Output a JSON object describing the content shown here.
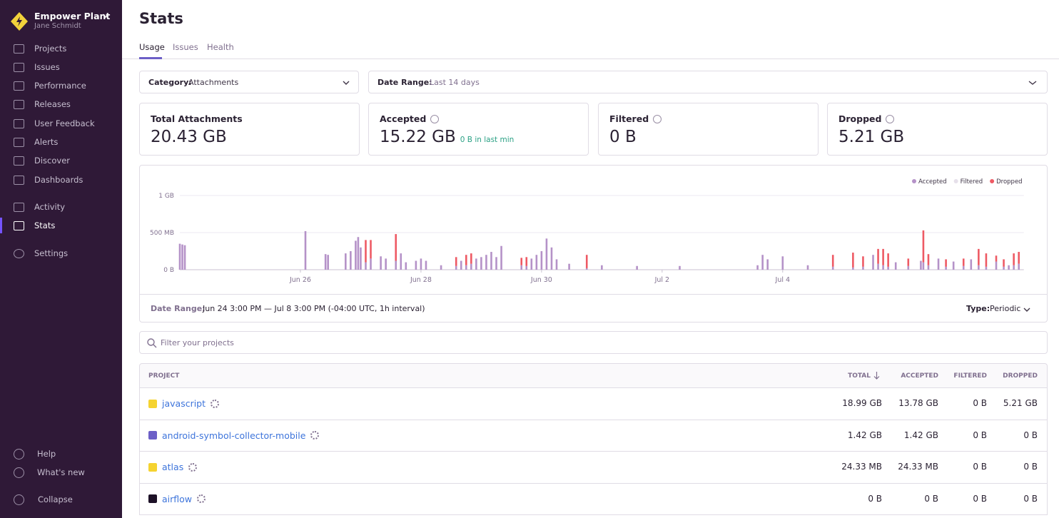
{
  "sidebar": {
    "org": "Empower Plant",
    "user": "Jane Schmidt",
    "nav": [
      "Projects",
      "Issues",
      "Performance",
      "Releases",
      "User Feedback",
      "Alerts",
      "Discover",
      "Dashboards"
    ],
    "nav2": [
      "Activity",
      "Stats"
    ],
    "settings": "Settings",
    "footer": [
      "Help",
      "What's new",
      "Collapse"
    ]
  },
  "header": {
    "title": "Stats",
    "tabs": [
      "Usage",
      "Issues",
      "Health"
    ]
  },
  "filters": [
    {
      "label": "Category:",
      "value": "Attachments"
    },
    {
      "label": "Date Range:",
      "value": "Last 14 days"
    }
  ],
  "cards": [
    {
      "label": "Total Attachments",
      "value": "20.43 GB"
    },
    {
      "label": "Accepted",
      "value": "15.22 GB",
      "note": "0 B in last min"
    },
    {
      "label": "Filtered",
      "value": "0 B"
    },
    {
      "label": "Dropped",
      "value": "5.21 GB"
    }
  ],
  "chart_data": {
    "type": "bar",
    "stacked": true,
    "legend": "top-right",
    "grid": true,
    "xlim": [
      0,
      336
    ],
    "xticks": [
      {
        "value": 48,
        "label": "Jun 26"
      },
      {
        "value": 96,
        "label": "Jun 28"
      },
      {
        "value": 144,
        "label": "Jun 30"
      },
      {
        "value": 192,
        "label": "Jul 2"
      },
      {
        "value": 240,
        "label": "Jul 4"
      }
    ],
    "ylim": [
      0,
      1000
    ],
    "yticks": [
      {
        "value": 0,
        "label": "0 B"
      },
      {
        "value": 500,
        "label": "500 MB"
      },
      {
        "value": 1000,
        "label": "1 GB"
      }
    ],
    "x": [
      0,
      1,
      2,
      50,
      58,
      59,
      66,
      68,
      70,
      71,
      72,
      74,
      76,
      80,
      82,
      86,
      88,
      90,
      94,
      96,
      98,
      104,
      110,
      112,
      114,
      116,
      118,
      120,
      122,
      124,
      126,
      128,
      136,
      138,
      140,
      142,
      144,
      146,
      148,
      150,
      155,
      162,
      168,
      182,
      199,
      230,
      232,
      234,
      240,
      250,
      260,
      268,
      272,
      276,
      278,
      280,
      282,
      285,
      290,
      295,
      296,
      298,
      302,
      305,
      308,
      312,
      315,
      318,
      321,
      325,
      328,
      330,
      332,
      334
    ],
    "series": [
      {
        "name": "Accepted",
        "color": "#b592c8",
        "values": [
          350,
          340,
          330,
          520,
          210,
          200,
          220,
          250,
          390,
          440,
          300,
          100,
          150,
          180,
          150,
          120,
          220,
          100,
          120,
          150,
          120,
          60,
          50,
          120,
          60,
          80,
          150,
          170,
          200,
          240,
          170,
          320,
          60,
          50,
          150,
          200,
          250,
          420,
          300,
          140,
          80,
          20,
          60,
          50,
          50,
          60,
          200,
          140,
          180,
          60,
          40,
          30,
          40,
          200,
          80,
          60,
          40,
          100,
          50,
          120,
          100,
          60,
          150,
          40,
          110,
          50,
          140,
          60,
          40,
          110,
          40,
          60,
          60,
          80
        ]
      },
      {
        "name": "Filtered",
        "color": "#e6e0ea",
        "values": [
          0,
          0,
          0,
          0,
          0,
          0,
          0,
          0,
          0,
          0,
          0,
          0,
          0,
          0,
          0,
          0,
          0,
          0,
          0,
          0,
          0,
          0,
          0,
          0,
          0,
          0,
          0,
          0,
          0,
          0,
          0,
          0,
          0,
          0,
          0,
          0,
          0,
          0,
          0,
          0,
          0,
          0,
          0,
          0,
          0,
          0,
          0,
          0,
          0,
          0,
          0,
          0,
          0,
          0,
          0,
          0,
          0,
          0,
          0,
          0,
          0,
          0,
          0,
          0,
          0,
          0,
          0,
          0,
          0,
          0,
          0,
          0,
          0,
          0
        ]
      },
      {
        "name": "Dropped",
        "color": "#ee5a64",
        "values": [
          0,
          0,
          0,
          0,
          0,
          0,
          0,
          0,
          0,
          0,
          0,
          300,
          250,
          0,
          0,
          360,
          0,
          0,
          0,
          0,
          0,
          0,
          120,
          0,
          140,
          140,
          0,
          0,
          0,
          0,
          0,
          0,
          100,
          120,
          0,
          0,
          0,
          0,
          0,
          0,
          0,
          180,
          0,
          0,
          0,
          0,
          0,
          0,
          0,
          0,
          160,
          200,
          140,
          0,
          200,
          220,
          180,
          0,
          100,
          0,
          430,
          150,
          0,
          100,
          0,
          100,
          0,
          220,
          180,
          80,
          100,
          0,
          160,
          160
        ]
      }
    ]
  },
  "chart_footer": {
    "date_label": "Date Range:",
    "date_value": "Jun 24 3:00 PM — Jul 8 3:00 PM (-04:00 UTC, 1h interval)",
    "type_label": "Type:",
    "type_value": "Periodic"
  },
  "search_placeholder": "Filter your projects",
  "table": {
    "columns": [
      "PROJECT",
      "TOTAL",
      "ACCEPTED",
      "FILTERED",
      "DROPPED"
    ],
    "rows": [
      [
        "javascript",
        "18.99 GB",
        "13.78 GB",
        "0 B",
        "5.21 GB"
      ],
      [
        "android-symbol-collector-mobile",
        "1.42 GB",
        "1.42 GB",
        "0 B",
        "0 B"
      ],
      [
        "atlas",
        "24.33 MB",
        "24.33 MB",
        "0 B",
        "0 B"
      ],
      [
        "airflow",
        "0 B",
        "0 B",
        "0 B",
        "0 B"
      ]
    ]
  }
}
